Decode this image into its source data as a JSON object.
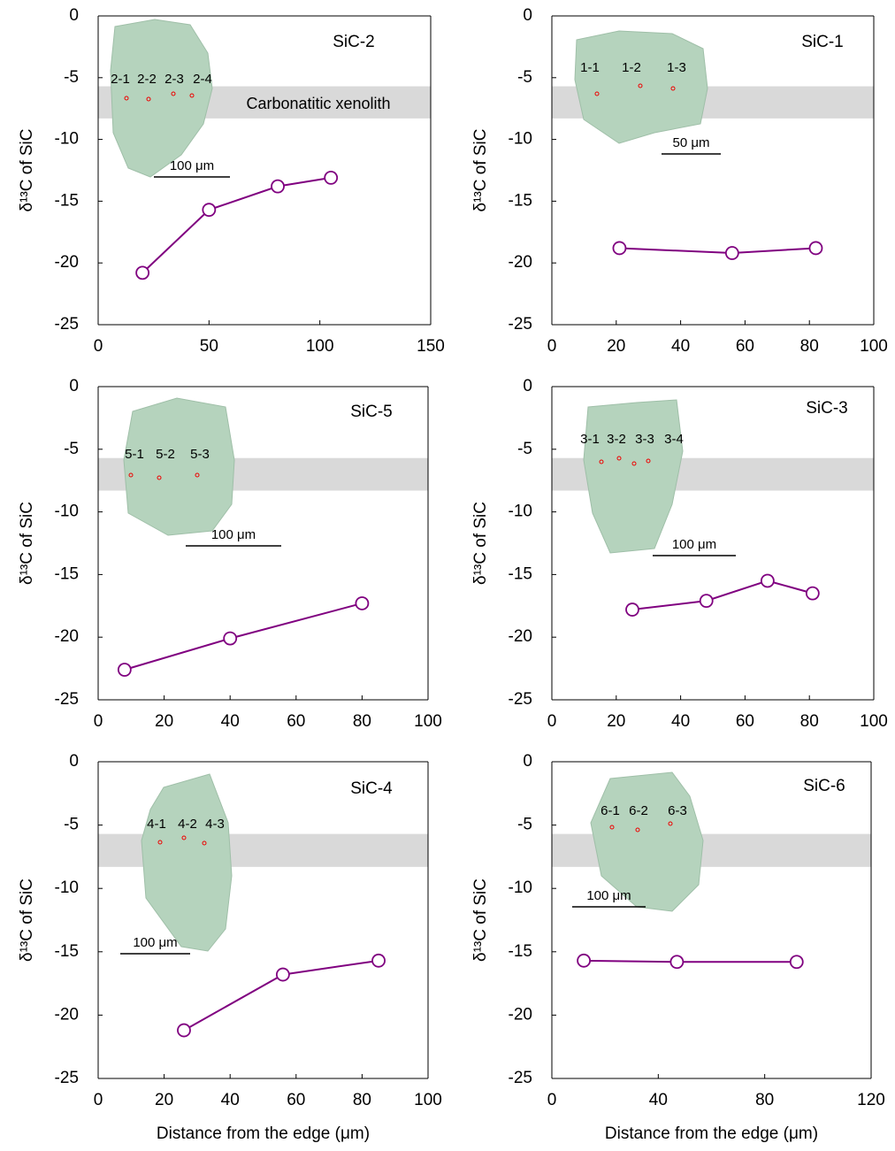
{
  "chart_data": [
    {
      "type": "line",
      "title": "SiC-2",
      "ylabel": "δ¹³C of SiC",
      "x": [
        20,
        50,
        81,
        105
      ],
      "values": [
        -20.8,
        -15.7,
        -13.8,
        -13.1
      ],
      "color": "#800080",
      "xlim": [
        0,
        150
      ],
      "xticks": [
        0,
        50,
        100,
        150
      ],
      "ylim": [
        -25,
        0
      ],
      "yticks": [
        0,
        -5,
        -10,
        -15,
        -20,
        -25
      ],
      "band": [
        -8.3,
        -5.7
      ],
      "band_color": "#d9d9d9",
      "annotation": "Carbonatitic xenolith",
      "spot_labels": [
        "2-1",
        "2-2",
        "2-3",
        "2-4"
      ],
      "scale_bar": "100 μm"
    },
    {
      "type": "line",
      "title": "SiC-1",
      "ylabel": "δ¹³C of SiC",
      "x": [
        21,
        56,
        82
      ],
      "values": [
        -18.8,
        -19.2,
        -18.8
      ],
      "color": "#800080",
      "xlim": [
        0,
        100
      ],
      "xticks": [
        0,
        20,
        40,
        60,
        80,
        100
      ],
      "ylim": [
        -25,
        0
      ],
      "yticks": [
        0,
        -5,
        -10,
        -15,
        -20,
        -25
      ],
      "band": [
        -8.3,
        -5.7
      ],
      "band_color": "#d9d9d9",
      "spot_labels": [
        "1-1",
        "1-2",
        "1-3"
      ],
      "scale_bar": "50 μm"
    },
    {
      "type": "line",
      "title": "SiC-5",
      "ylabel": "δ¹³C of SiC",
      "x": [
        8,
        40,
        80
      ],
      "values": [
        -22.6,
        -20.1,
        -17.3
      ],
      "color": "#800080",
      "xlim": [
        0,
        100
      ],
      "xticks": [
        0,
        20,
        40,
        60,
        80,
        100
      ],
      "ylim": [
        -25,
        0
      ],
      "yticks": [
        0,
        -5,
        -10,
        -15,
        -20,
        -25
      ],
      "band": [
        -8.3,
        -5.7
      ],
      "band_color": "#d9d9d9",
      "spot_labels": [
        "5-1",
        "5-2",
        "5-3"
      ],
      "scale_bar": "100 μm"
    },
    {
      "type": "line",
      "title": "SiC-3",
      "ylabel": "δ¹³C of SiC",
      "x": [
        25,
        48,
        67,
        81
      ],
      "values": [
        -17.8,
        -17.1,
        -15.5,
        -16.5
      ],
      "color": "#800080",
      "xlim": [
        0,
        100
      ],
      "xticks": [
        0,
        20,
        40,
        60,
        80,
        100
      ],
      "ylim": [
        -25,
        0
      ],
      "yticks": [
        0,
        -5,
        -10,
        -15,
        -20,
        -25
      ],
      "band": [
        -8.3,
        -5.7
      ],
      "band_color": "#d9d9d9",
      "spot_labels": [
        "3-1",
        "3-2",
        "3-3",
        "3-4"
      ],
      "scale_bar": "100 μm"
    },
    {
      "type": "line",
      "title": "SiC-4",
      "ylabel": "δ¹³C of SiC",
      "xlabel": "Distance from the edge (μm)",
      "x": [
        26,
        56,
        85
      ],
      "values": [
        -21.2,
        -16.8,
        -15.7
      ],
      "color": "#800080",
      "xlim": [
        0,
        100
      ],
      "xticks": [
        0,
        20,
        40,
        60,
        80,
        100
      ],
      "ylim": [
        -25,
        0
      ],
      "yticks": [
        0,
        -5,
        -10,
        -15,
        -20,
        -25
      ],
      "band": [
        -8.3,
        -5.7
      ],
      "band_color": "#d9d9d9",
      "spot_labels": [
        "4-1",
        "4-2",
        "4-3"
      ],
      "scale_bar": "100 μm"
    },
    {
      "type": "line",
      "title": "SiC-6",
      "ylabel": "δ¹³C of SiC",
      "xlabel": "Distance from the edge (μm)",
      "x": [
        12,
        47,
        92
      ],
      "values": [
        -15.7,
        -15.8,
        -15.8
      ],
      "color": "#800080",
      "xlim": [
        0,
        120
      ],
      "xticks": [
        0,
        40,
        80,
        120
      ],
      "ylim": [
        -25,
        0
      ],
      "yticks": [
        0,
        -5,
        -10,
        -15,
        -20,
        -25
      ],
      "band": [
        -8.3,
        -5.7
      ],
      "band_color": "#d9d9d9",
      "spot_labels": [
        "6-1",
        "6-2",
        "6-3"
      ],
      "scale_bar": "100 μm"
    }
  ]
}
